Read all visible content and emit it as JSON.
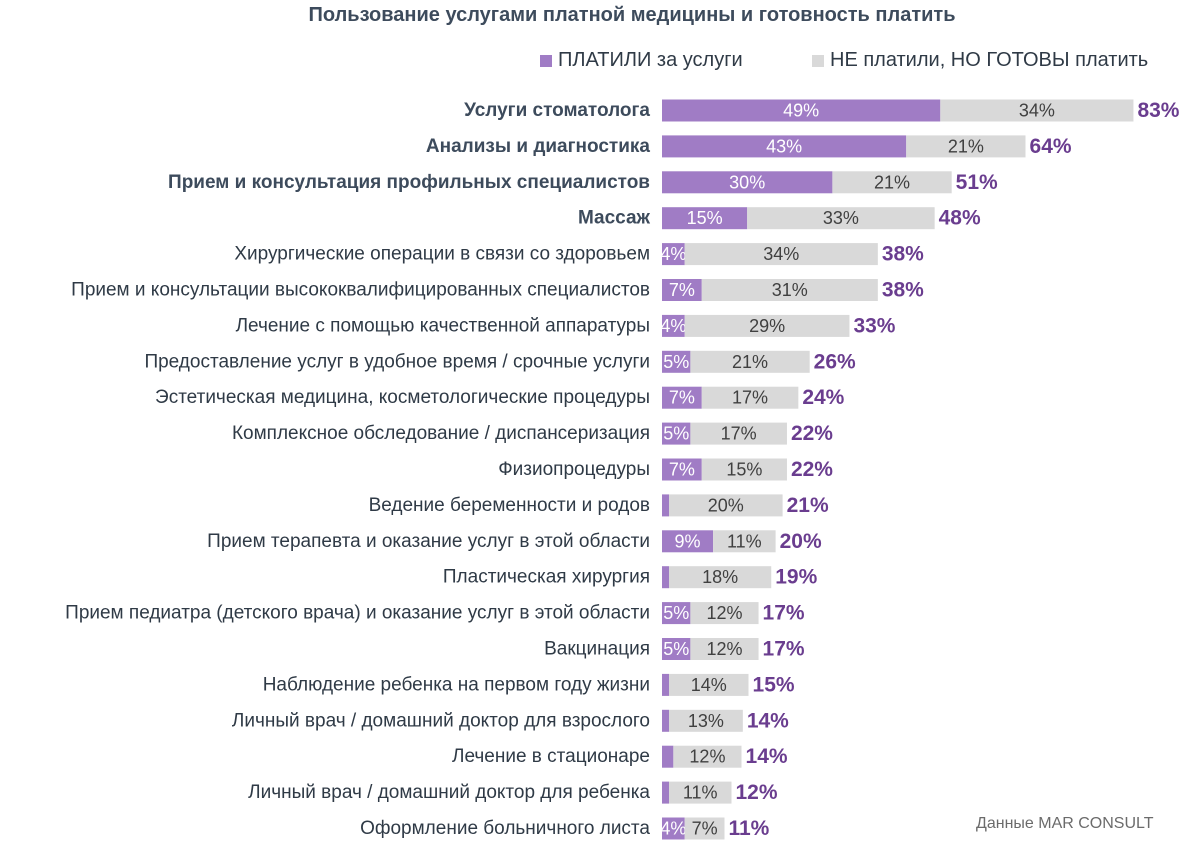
{
  "chart_data": {
    "type": "bar",
    "orientation": "horizontal",
    "stacked": true,
    "title": "Пользование услугами платной медицины и готовность платить",
    "legend_position": "top-right",
    "grid": false,
    "colors": {
      "paid": "#a07cc5",
      "ready": "#d9d9d9",
      "total": "#6a3d8f",
      "label_dark": "#3d4b5c",
      "label": "#2f3a46"
    },
    "series": [
      {
        "name": "ПЛАТИЛИ за услуги",
        "color": "#a07cc5",
        "values": [
          49,
          43,
          30,
          15,
          4,
          7,
          4,
          5,
          7,
          5,
          7,
          1,
          9,
          1,
          5,
          5,
          1,
          1,
          2,
          1,
          4
        ],
        "labels": [
          "49%",
          "43%",
          "30%",
          "15%",
          "4%",
          "7%",
          "4%",
          "5%",
          "7%",
          "5%",
          "7%",
          "",
          "9%",
          "",
          "5%",
          "5%",
          "",
          "",
          "",
          "",
          "4%"
        ]
      },
      {
        "name": "НЕ платили, НО ГОТОВЫ платить",
        "color": "#d9d9d9",
        "values": [
          34,
          21,
          21,
          33,
          34,
          31,
          29,
          21,
          17,
          17,
          15,
          20,
          11,
          18,
          12,
          12,
          14,
          13,
          12,
          11,
          7
        ],
        "labels": [
          "34%",
          "21%",
          "21%",
          "33%",
          "34%",
          "31%",
          "29%",
          "21%",
          "17%",
          "17%",
          "15%",
          "20%",
          "11%",
          "18%",
          "12%",
          "12%",
          "14%",
          "13%",
          "12%",
          "11%",
          "7%"
        ]
      }
    ],
    "categories": [
      "Услуги стоматолога",
      "Анализы и диагностика",
      "Прием и консультация профильных специалистов",
      "Массаж",
      "Хирургические операции в связи со здоровьем",
      "Прием и консультации высококвалифицированных специалистов",
      "Лечение с помощью качественной аппаратуры",
      "Предоставление услуг в удобное время / срочные услуги",
      "Эстетическая медицина, косметологические процедуры",
      "Комплексное обследование / диспансеризация",
      "Физиопроцедуры",
      "Ведение беременности и родов",
      "Прием терапевта и оказание услуг в этой области",
      "Пластическая хирургия",
      "Прием педиатра (детского врача) и оказание услуг в этой области",
      "Вакцинация",
      "Наблюдение ребенка на первом году жизни",
      "Личный врач / домашний доктор для взрослого",
      "Лечение в стационаре",
      "Личный врач / домашний доктор для ребенка",
      "Оформление больничного листа"
    ],
    "bold_categories": [
      0,
      1,
      2,
      3
    ],
    "totals": [
      "83%",
      "64%",
      "51%",
      "48%",
      "38%",
      "38%",
      "33%",
      "26%",
      "24%",
      "22%",
      "22%",
      "21%",
      "20%",
      "19%",
      "17%",
      "17%",
      "15%",
      "14%",
      "14%",
      "12%",
      "11%"
    ]
  },
  "source": "Данные MAR CONSULT"
}
